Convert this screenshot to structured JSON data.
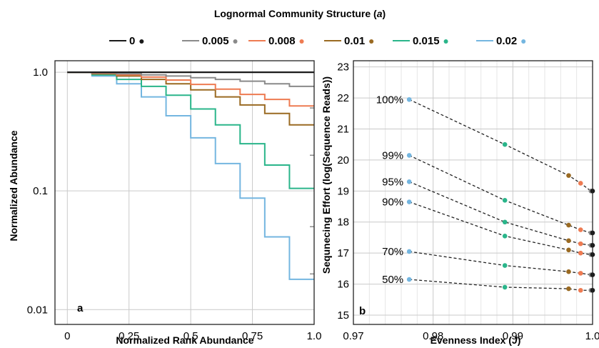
{
  "header": {
    "title_main": "Lognormal Community Structure (",
    "title_italic": "a",
    "title_end": ")"
  },
  "colors": {
    "0": "#1a1a1a",
    "0.005": "#8a8a8a",
    "0.008": "#ee7b52",
    "0.01": "#9a6a22",
    "0.015": "#2ab58a",
    "0.02": "#74b6e0"
  },
  "legend": [
    {
      "label": "0",
      "color": "#1a1a1a"
    },
    {
      "label": "0.005",
      "color": "#8a8a8a"
    },
    {
      "label": "0.008",
      "color": "#ee7b52"
    },
    {
      "label": "0.01",
      "color": "#9a6a22"
    },
    {
      "label": "0.015",
      "color": "#2ab58a"
    },
    {
      "label": "0.02",
      "color": "#74b6e0"
    }
  ],
  "chart_data": [
    {
      "type": "line",
      "step": true,
      "panel_label": "a",
      "xlabel": "Normalized Rank Abundance",
      "ylabel": "Normalized Abundance",
      "xlim": [
        -0.05,
        1.0
      ],
      "ylim": [
        0.0075,
        1.25
      ],
      "yscale": "log",
      "grid": true,
      "xticks": [
        0,
        0.25,
        0.5,
        0.75,
        1.0
      ],
      "xtick_labels": [
        "0",
        "0.25",
        "0.5",
        "0.75",
        "1.0"
      ],
      "yticks": [
        0.01,
        0.1,
        1.0
      ],
      "ytick_labels": [
        "0.01",
        "0.1",
        "1.0"
      ],
      "x": [
        0,
        0.1,
        0.2,
        0.3,
        0.4,
        0.5,
        0.6,
        0.7,
        0.8,
        0.9,
        1.0
      ],
      "series": [
        {
          "name": "0",
          "values": [
            1.0,
            1.0,
            1.0,
            1.0,
            1.0,
            1.0,
            1.0,
            1.0,
            1.0,
            1.0,
            1.0
          ]
        },
        {
          "name": "0.005",
          "values": [
            1.0,
            0.99,
            0.97,
            0.95,
            0.93,
            0.9,
            0.87,
            0.84,
            0.8,
            0.76,
            0.76
          ]
        },
        {
          "name": "0.008",
          "values": [
            1.0,
            0.98,
            0.95,
            0.91,
            0.86,
            0.79,
            0.72,
            0.65,
            0.59,
            0.52,
            0.52
          ]
        },
        {
          "name": "0.01",
          "values": [
            1.0,
            0.97,
            0.93,
            0.87,
            0.8,
            0.71,
            0.62,
            0.53,
            0.45,
            0.36,
            0.36
          ]
        },
        {
          "name": "0.015",
          "values": [
            1.0,
            0.95,
            0.87,
            0.76,
            0.64,
            0.49,
            0.36,
            0.25,
            0.165,
            0.105,
            0.105
          ]
        },
        {
          "name": "0.02",
          "values": [
            1.0,
            0.93,
            0.8,
            0.62,
            0.43,
            0.28,
            0.17,
            0.087,
            0.041,
            0.018,
            0.018
          ]
        }
      ]
    },
    {
      "type": "scatter",
      "panel_label": "b",
      "xlabel_main": "Evenness Index (",
      "xlabel_italic": "J",
      "xlabel_end": ")",
      "ylabel": "Sequnecing Effort (log(Sequence Reads))",
      "xlim": [
        0.97,
        1.0
      ],
      "ylim": [
        14.7,
        23.2
      ],
      "grid": true,
      "xticks": [
        0.97,
        0.98,
        0.99,
        1.0
      ],
      "xtick_labels": [
        "0.97",
        "0.98",
        "0.99",
        "1.0"
      ],
      "yticks": [
        15,
        16,
        17,
        18,
        19,
        20,
        21,
        22,
        23
      ],
      "ytick_labels": [
        "15",
        "16",
        "17",
        "18",
        "19",
        "20",
        "21",
        "22",
        "23"
      ],
      "series_x": {
        "0.02": 0.977,
        "0.015": 0.989,
        "0.01": 0.997,
        "0.008": 0.9985,
        "0.005": 0.9998,
        "0": 1.0
      },
      "coverage_levels": [
        {
          "label": "100%",
          "points": [
            {
              "s": "0.02",
              "y": 21.95
            },
            {
              "s": "0.015",
              "y": 20.5
            },
            {
              "s": "0.01",
              "y": 19.5
            },
            {
              "s": "0.008",
              "y": 19.25
            },
            {
              "s": "0.005",
              "y": 19.0
            },
            {
              "s": "0",
              "y": 19.0
            }
          ]
        },
        {
          "label": "99%",
          "points": [
            {
              "s": "0.02",
              "y": 20.15
            },
            {
              "s": "0.015",
              "y": 18.7
            },
            {
              "s": "0.01",
              "y": 17.9
            },
            {
              "s": "0.008",
              "y": 17.75
            },
            {
              "s": "0.005",
              "y": 17.65
            },
            {
              "s": "0",
              "y": 17.65
            }
          ]
        },
        {
          "label": "95%",
          "points": [
            {
              "s": "0.02",
              "y": 19.3
            },
            {
              "s": "0.015",
              "y": 18.0
            },
            {
              "s": "0.01",
              "y": 17.4
            },
            {
              "s": "0.008",
              "y": 17.3
            },
            {
              "s": "0.005",
              "y": 17.25
            },
            {
              "s": "0",
              "y": 17.25
            }
          ]
        },
        {
          "label": "90%",
          "points": [
            {
              "s": "0.02",
              "y": 18.65
            },
            {
              "s": "0.015",
              "y": 17.55
            },
            {
              "s": "0.01",
              "y": 17.1
            },
            {
              "s": "0.008",
              "y": 17.0
            },
            {
              "s": "0.005",
              "y": 16.95
            },
            {
              "s": "0",
              "y": 16.95
            }
          ]
        },
        {
          "label": "70%",
          "points": [
            {
              "s": "0.02",
              "y": 17.05
            },
            {
              "s": "0.015",
              "y": 16.6
            },
            {
              "s": "0.01",
              "y": 16.4
            },
            {
              "s": "0.008",
              "y": 16.35
            },
            {
              "s": "0.005",
              "y": 16.3
            },
            {
              "s": "0",
              "y": 16.3
            }
          ]
        },
        {
          "label": "50%",
          "points": [
            {
              "s": "0.02",
              "y": 16.15
            },
            {
              "s": "0.015",
              "y": 15.9
            },
            {
              "s": "0.01",
              "y": 15.85
            },
            {
              "s": "0.008",
              "y": 15.8
            },
            {
              "s": "0.005",
              "y": 15.8
            },
            {
              "s": "0",
              "y": 15.8
            }
          ]
        }
      ]
    }
  ]
}
